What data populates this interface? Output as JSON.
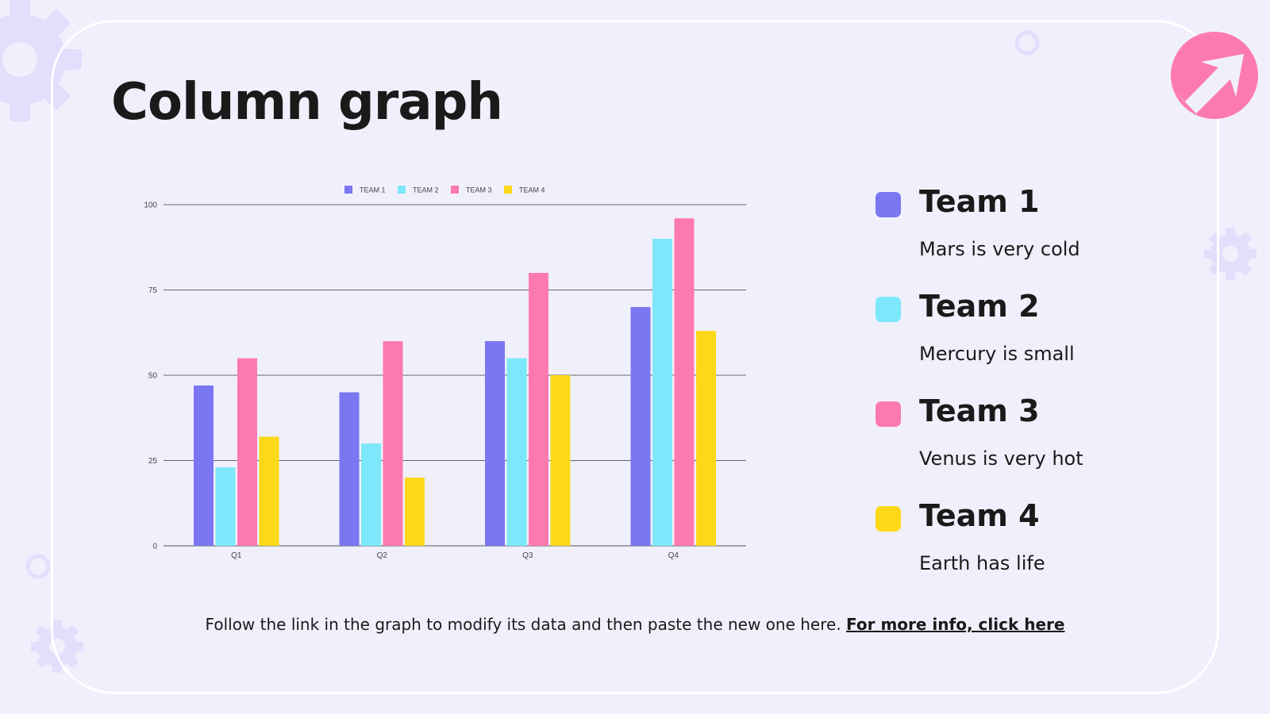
{
  "slide": {
    "title": "Column graph",
    "footer_text": "Follow the link in the graph to modify its data and then paste the new one here.",
    "footer_link": "For more info, click here"
  },
  "legend": [
    {
      "name": "Team 1",
      "description": "Mars is very cold",
      "color": "#7b76f1"
    },
    {
      "name": "Team 2",
      "description": "Mercury is small",
      "color": "#7de7fb"
    },
    {
      "name": "Team 3",
      "description": "Venus is very hot",
      "color": "#fd7ab0"
    },
    {
      "name": "Team 4",
      "description": "Earth has life",
      "color": "#fdd819"
    }
  ],
  "colors": {
    "background": "#f0f0fc",
    "accent_pink": "#fd7ab0",
    "decor_lavender": "#e2defc"
  },
  "icons": [
    "gear-icon",
    "arrow-icon",
    "ring-icon"
  ],
  "chart_data": {
    "type": "bar",
    "categories": [
      "Q1",
      "Q2",
      "Q3",
      "Q4"
    ],
    "series": [
      {
        "name": "TEAM 1",
        "values": [
          47,
          45,
          60,
          70
        ],
        "color": "#7b76f1"
      },
      {
        "name": "TEAM 2",
        "values": [
          23,
          30,
          55,
          90
        ],
        "color": "#7de7fb"
      },
      {
        "name": "TEAM 3",
        "values": [
          55,
          60,
          80,
          96
        ],
        "color": "#fd7ab0"
      },
      {
        "name": "TEAM 4",
        "values": [
          32,
          20,
          50,
          63
        ],
        "color": "#fdd819"
      }
    ],
    "ylim": [
      0,
      100
    ],
    "yticks": [
      0,
      25,
      50,
      75,
      100
    ],
    "grid": true,
    "legend_position": "top"
  }
}
